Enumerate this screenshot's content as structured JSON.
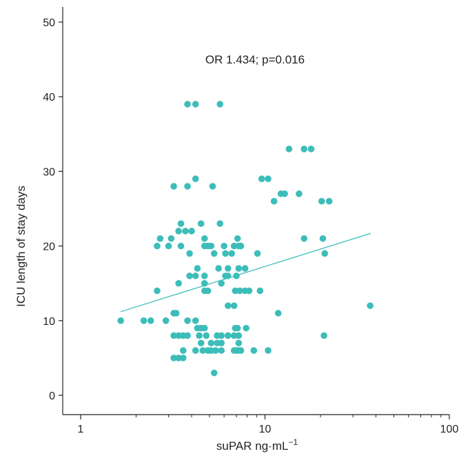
{
  "chart_data": {
    "type": "scatter",
    "annotation": "OR 1.434; p=0.016",
    "xlabel": "suPAR ng·mL",
    "xlabel_superscript": "−1",
    "ylabel": "ICU length of stay days",
    "xscale": "log",
    "xlim": [
      1,
      100
    ],
    "ylim": [
      0,
      50
    ],
    "xticks": [
      "1",
      "10",
      "100"
    ],
    "yticks": [
      "0",
      "10",
      "20",
      "30",
      "40",
      "50"
    ],
    "grid": false,
    "point_color": "#3dbdb9",
    "line_color": "#3dbdb9",
    "trendline": {
      "x": [
        1.65,
        37.5
      ],
      "y": [
        11.2,
        21.7
      ]
    },
    "points": [
      {
        "x": 3.8,
        "y": 39
      },
      {
        "x": 4.2,
        "y": 39
      },
      {
        "x": 5.7,
        "y": 39
      },
      {
        "x": 13.5,
        "y": 33
      },
      {
        "x": 16.3,
        "y": 33
      },
      {
        "x": 17.8,
        "y": 33
      },
      {
        "x": 9.6,
        "y": 29
      },
      {
        "x": 10.4,
        "y": 29
      },
      {
        "x": 4.2,
        "y": 29
      },
      {
        "x": 3.2,
        "y": 28
      },
      {
        "x": 3.8,
        "y": 28
      },
      {
        "x": 5.2,
        "y": 28
      },
      {
        "x": 12.2,
        "y": 27
      },
      {
        "x": 12.8,
        "y": 27
      },
      {
        "x": 15.3,
        "y": 27
      },
      {
        "x": 11.2,
        "y": 26
      },
      {
        "x": 20.3,
        "y": 26
      },
      {
        "x": 22.3,
        "y": 26
      },
      {
        "x": 3.5,
        "y": 23
      },
      {
        "x": 4.5,
        "y": 23
      },
      {
        "x": 5.7,
        "y": 23
      },
      {
        "x": 3.4,
        "y": 22
      },
      {
        "x": 3.7,
        "y": 22
      },
      {
        "x": 4.0,
        "y": 22
      },
      {
        "x": 2.7,
        "y": 21
      },
      {
        "x": 3.1,
        "y": 21
      },
      {
        "x": 4.7,
        "y": 21
      },
      {
        "x": 7.1,
        "y": 21
      },
      {
        "x": 16.3,
        "y": 21
      },
      {
        "x": 20.6,
        "y": 21
      },
      {
        "x": 2.6,
        "y": 20
      },
      {
        "x": 3.0,
        "y": 20
      },
      {
        "x": 3.5,
        "y": 20
      },
      {
        "x": 4.7,
        "y": 20
      },
      {
        "x": 4.9,
        "y": 20
      },
      {
        "x": 5.1,
        "y": 20
      },
      {
        "x": 6.0,
        "y": 20
      },
      {
        "x": 6.8,
        "y": 20
      },
      {
        "x": 7.2,
        "y": 20
      },
      {
        "x": 7.4,
        "y": 20
      },
      {
        "x": 3.9,
        "y": 19
      },
      {
        "x": 5.3,
        "y": 19
      },
      {
        "x": 6.1,
        "y": 19
      },
      {
        "x": 6.6,
        "y": 19
      },
      {
        "x": 9.1,
        "y": 19
      },
      {
        "x": 21.1,
        "y": 19
      },
      {
        "x": 4.3,
        "y": 17
      },
      {
        "x": 5.6,
        "y": 17
      },
      {
        "x": 6.3,
        "y": 17
      },
      {
        "x": 7.2,
        "y": 17
      },
      {
        "x": 7.8,
        "y": 17
      },
      {
        "x": 3.9,
        "y": 16
      },
      {
        "x": 4.2,
        "y": 16
      },
      {
        "x": 4.7,
        "y": 16
      },
      {
        "x": 6.1,
        "y": 16
      },
      {
        "x": 6.3,
        "y": 16
      },
      {
        "x": 7.0,
        "y": 16
      },
      {
        "x": 3.4,
        "y": 15
      },
      {
        "x": 4.7,
        "y": 15
      },
      {
        "x": 5.8,
        "y": 15
      },
      {
        "x": 2.6,
        "y": 14
      },
      {
        "x": 4.7,
        "y": 14
      },
      {
        "x": 4.9,
        "y": 14
      },
      {
        "x": 6.9,
        "y": 14
      },
      {
        "x": 7.3,
        "y": 14
      },
      {
        "x": 7.8,
        "y": 14
      },
      {
        "x": 8.2,
        "y": 14
      },
      {
        "x": 9.4,
        "y": 14
      },
      {
        "x": 6.3,
        "y": 12
      },
      {
        "x": 6.8,
        "y": 12
      },
      {
        "x": 37.2,
        "y": 12
      },
      {
        "x": 3.2,
        "y": 11
      },
      {
        "x": 3.3,
        "y": 11
      },
      {
        "x": 11.8,
        "y": 11
      },
      {
        "x": 1.65,
        "y": 10
      },
      {
        "x": 2.2,
        "y": 10
      },
      {
        "x": 2.4,
        "y": 10
      },
      {
        "x": 2.9,
        "y": 10
      },
      {
        "x": 3.8,
        "y": 10
      },
      {
        "x": 4.2,
        "y": 10
      },
      {
        "x": 4.3,
        "y": 9
      },
      {
        "x": 4.5,
        "y": 9
      },
      {
        "x": 4.7,
        "y": 9
      },
      {
        "x": 6.9,
        "y": 9
      },
      {
        "x": 7.1,
        "y": 9
      },
      {
        "x": 7.9,
        "y": 9
      },
      {
        "x": 3.2,
        "y": 8
      },
      {
        "x": 3.4,
        "y": 8
      },
      {
        "x": 3.6,
        "y": 8
      },
      {
        "x": 3.8,
        "y": 8
      },
      {
        "x": 4.4,
        "y": 8
      },
      {
        "x": 4.8,
        "y": 8
      },
      {
        "x": 5.5,
        "y": 8
      },
      {
        "x": 5.8,
        "y": 8
      },
      {
        "x": 6.3,
        "y": 8
      },
      {
        "x": 6.8,
        "y": 8
      },
      {
        "x": 7.2,
        "y": 8
      },
      {
        "x": 20.9,
        "y": 8
      },
      {
        "x": 4.5,
        "y": 7
      },
      {
        "x": 5.1,
        "y": 7
      },
      {
        "x": 5.5,
        "y": 7
      },
      {
        "x": 5.8,
        "y": 7
      },
      {
        "x": 7.2,
        "y": 7
      },
      {
        "x": 3.6,
        "y": 6
      },
      {
        "x": 4.2,
        "y": 6
      },
      {
        "x": 4.6,
        "y": 6
      },
      {
        "x": 4.9,
        "y": 6
      },
      {
        "x": 5.1,
        "y": 6
      },
      {
        "x": 5.4,
        "y": 6
      },
      {
        "x": 5.8,
        "y": 6
      },
      {
        "x": 6.8,
        "y": 6
      },
      {
        "x": 7.0,
        "y": 6
      },
      {
        "x": 7.2,
        "y": 6
      },
      {
        "x": 7.4,
        "y": 6
      },
      {
        "x": 8.7,
        "y": 6
      },
      {
        "x": 10.4,
        "y": 6
      },
      {
        "x": 3.2,
        "y": 5
      },
      {
        "x": 3.4,
        "y": 5
      },
      {
        "x": 3.6,
        "y": 5
      },
      {
        "x": 5.3,
        "y": 3
      }
    ]
  }
}
